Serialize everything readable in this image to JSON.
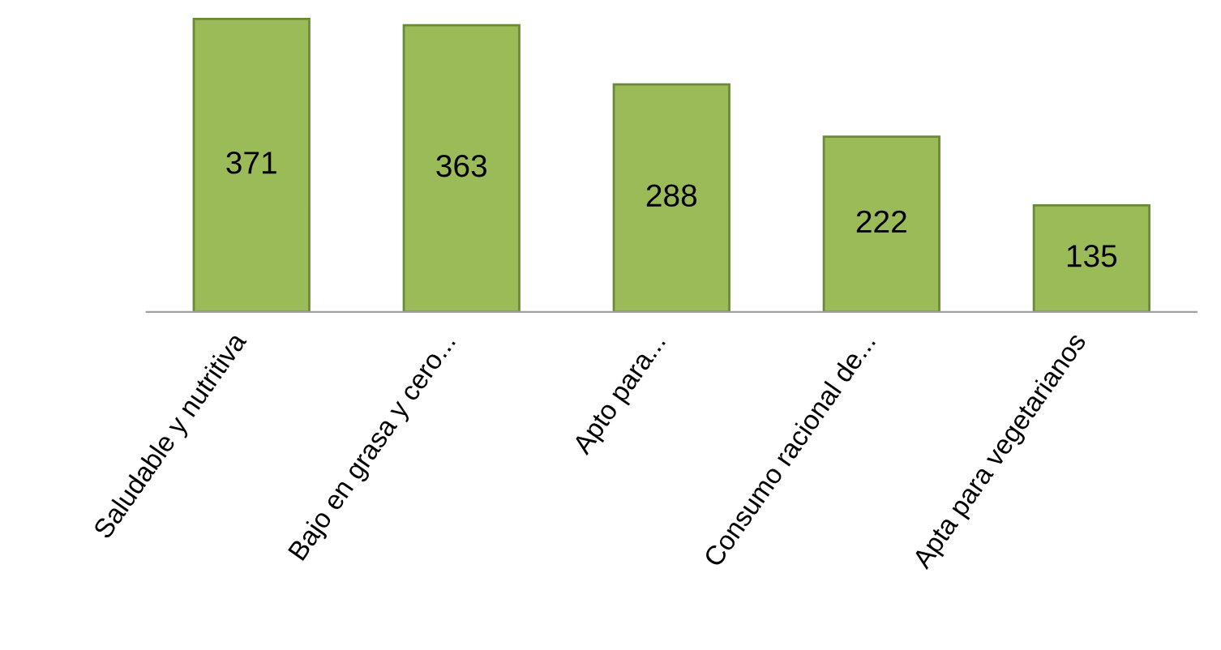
{
  "chart_data": {
    "type": "bar",
    "categories": [
      "Saludable y nutritiva",
      "Bajo en grasa y cero...",
      "Apto para...",
      "Consumo racional de...",
      "Apta para vegetarianos"
    ],
    "values": [
      371,
      363,
      288,
      222,
      135
    ],
    "color": "#9bbb59",
    "data_labels": true
  }
}
